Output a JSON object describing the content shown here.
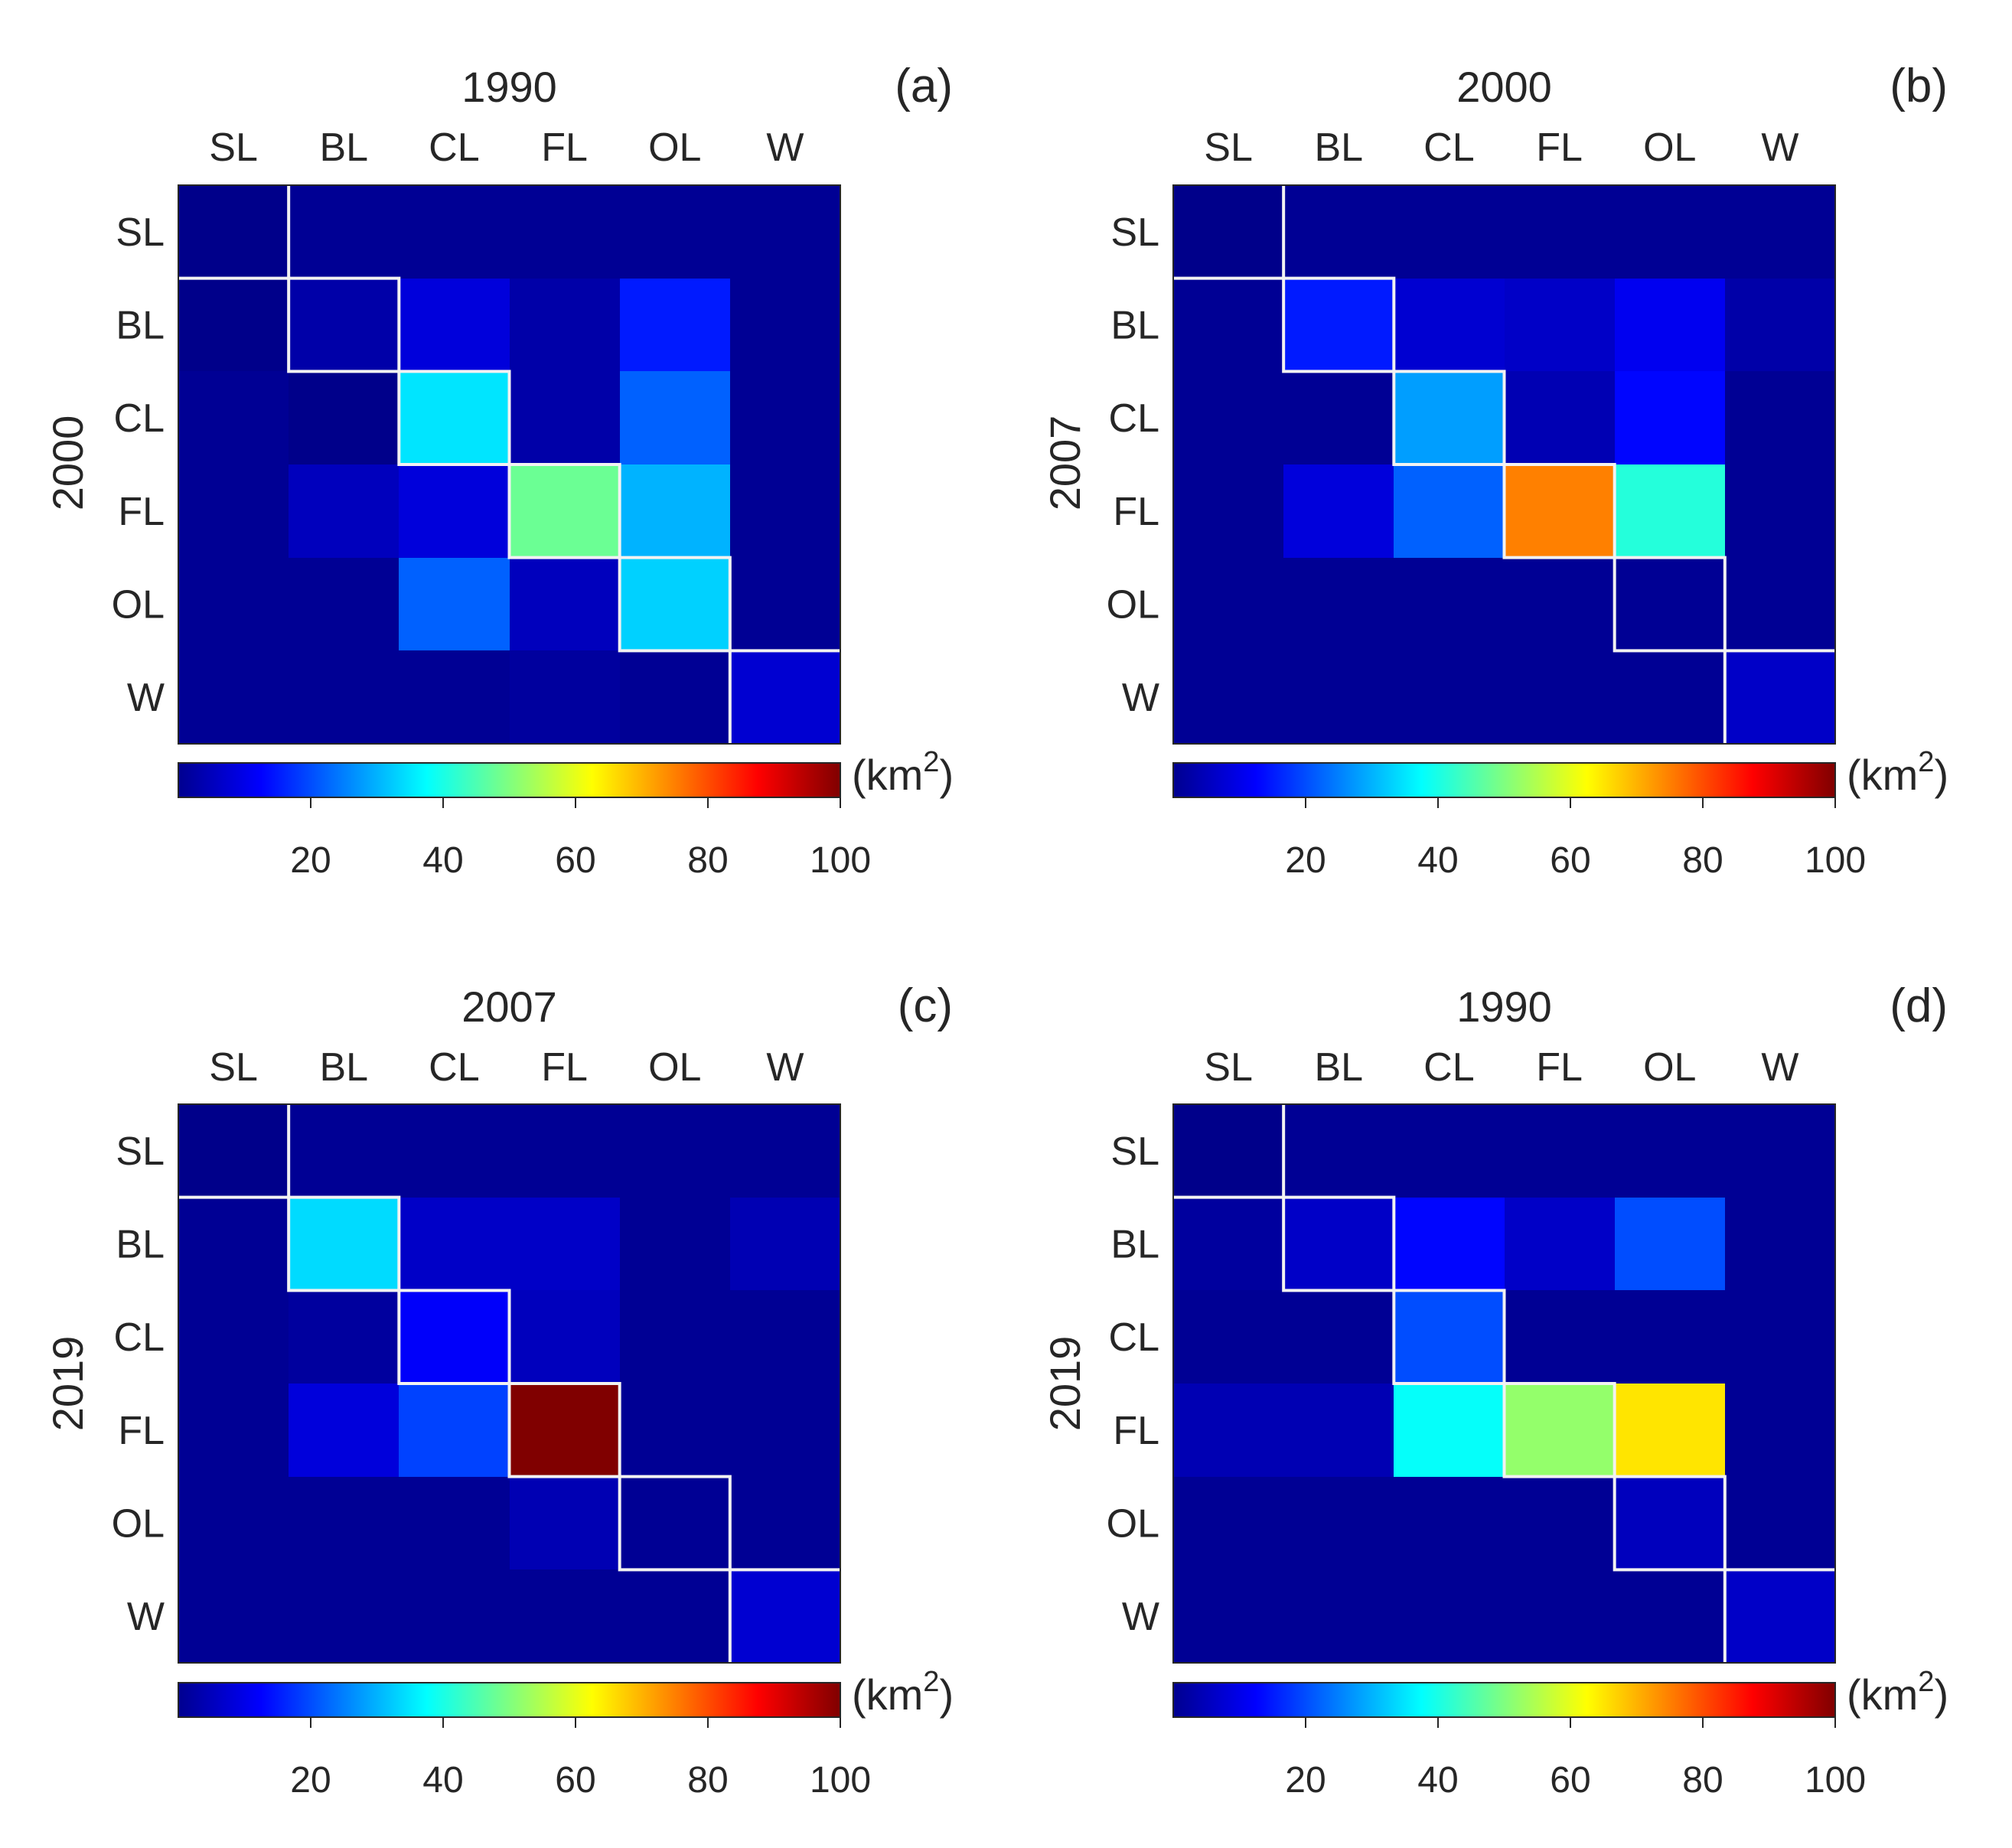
{
  "chart_data": [
    {
      "type": "heatmap",
      "panel_label": "(a)",
      "title": "1990",
      "ylabel": "2000",
      "x_categories": [
        "SL",
        "BL",
        "CL",
        "FL",
        "OL",
        "W"
      ],
      "y_categories": [
        "SL",
        "BL",
        "CL",
        "FL",
        "OL",
        "W"
      ],
      "values": [
        [
          1,
          2,
          2,
          2,
          2,
          2
        ],
        [
          1,
          4,
          9,
          4,
          15,
          2
        ],
        [
          2,
          1,
          35,
          4,
          22,
          2
        ],
        [
          2,
          6,
          9,
          48,
          30,
          2
        ],
        [
          2,
          2,
          22,
          6,
          33,
          2
        ],
        [
          2,
          2,
          2,
          3,
          2,
          8
        ]
      ],
      "colorbar": {
        "min": 0,
        "max": 100,
        "ticks": [
          20,
          40,
          60,
          80,
          100
        ],
        "unit_prefix": "(km",
        "unit_sup": "2",
        "unit_suffix": ")"
      }
    },
    {
      "type": "heatmap",
      "panel_label": "(b)",
      "title": "2000",
      "ylabel": "2007",
      "x_categories": [
        "SL",
        "BL",
        "CL",
        "FL",
        "OL",
        "W"
      ],
      "y_categories": [
        "SL",
        "BL",
        "CL",
        "FL",
        "OL",
        "W"
      ],
      "values": [
        [
          1,
          2,
          2,
          2,
          2,
          2
        ],
        [
          2,
          15,
          8,
          7,
          11,
          4
        ],
        [
          2,
          2,
          28,
          5,
          13,
          2
        ],
        [
          2,
          9,
          22,
          75,
          41,
          2
        ],
        [
          2,
          2,
          2,
          2,
          2,
          2
        ],
        [
          2,
          2,
          2,
          2,
          2,
          7
        ]
      ],
      "colorbar": {
        "min": 0,
        "max": 100,
        "ticks": [
          20,
          40,
          60,
          80,
          100
        ],
        "unit_prefix": "(km",
        "unit_sup": "2",
        "unit_suffix": ")"
      }
    },
    {
      "type": "heatmap",
      "panel_label": "(c)",
      "title": "2007",
      "ylabel": "2019",
      "x_categories": [
        "SL",
        "BL",
        "CL",
        "FL",
        "OL",
        "W"
      ],
      "y_categories": [
        "SL",
        "BL",
        "CL",
        "FL",
        "OL",
        "W"
      ],
      "values": [
        [
          1,
          2,
          2,
          2,
          2,
          2
        ],
        [
          2,
          34,
          7,
          7,
          2,
          5
        ],
        [
          2,
          3,
          12,
          6,
          2,
          2
        ],
        [
          2,
          9,
          19,
          100,
          2,
          2
        ],
        [
          2,
          2,
          2,
          5,
          2,
          2
        ],
        [
          2,
          2,
          2,
          2,
          2,
          8
        ]
      ],
      "colorbar": {
        "min": 0,
        "max": 100,
        "ticks": [
          20,
          40,
          60,
          80,
          100
        ],
        "unit_prefix": "(km",
        "unit_sup": "2",
        "unit_suffix": ")"
      }
    },
    {
      "type": "heatmap",
      "panel_label": "(d)",
      "title": "1990",
      "ylabel": "2019",
      "x_categories": [
        "SL",
        "BL",
        "CL",
        "FL",
        "OL",
        "W"
      ],
      "y_categories": [
        "SL",
        "BL",
        "CL",
        "FL",
        "OL",
        "W"
      ],
      "values": [
        [
          1,
          2,
          2,
          2,
          2,
          2
        ],
        [
          3,
          7,
          13,
          7,
          20,
          2
        ],
        [
          2,
          2,
          20,
          2,
          2,
          2
        ],
        [
          5,
          5,
          38,
          52,
          65,
          2
        ],
        [
          2,
          2,
          2,
          2,
          6,
          2
        ],
        [
          2,
          2,
          2,
          2,
          2,
          7
        ]
      ],
      "colorbar": {
        "min": 0,
        "max": 100,
        "ticks": [
          20,
          40,
          60,
          80,
          100
        ],
        "unit_prefix": "(km",
        "unit_sup": "2",
        "unit_suffix": ")"
      }
    }
  ],
  "colors": {
    "diagonal_outline": "#f2f2f2",
    "frame": "#262626"
  }
}
